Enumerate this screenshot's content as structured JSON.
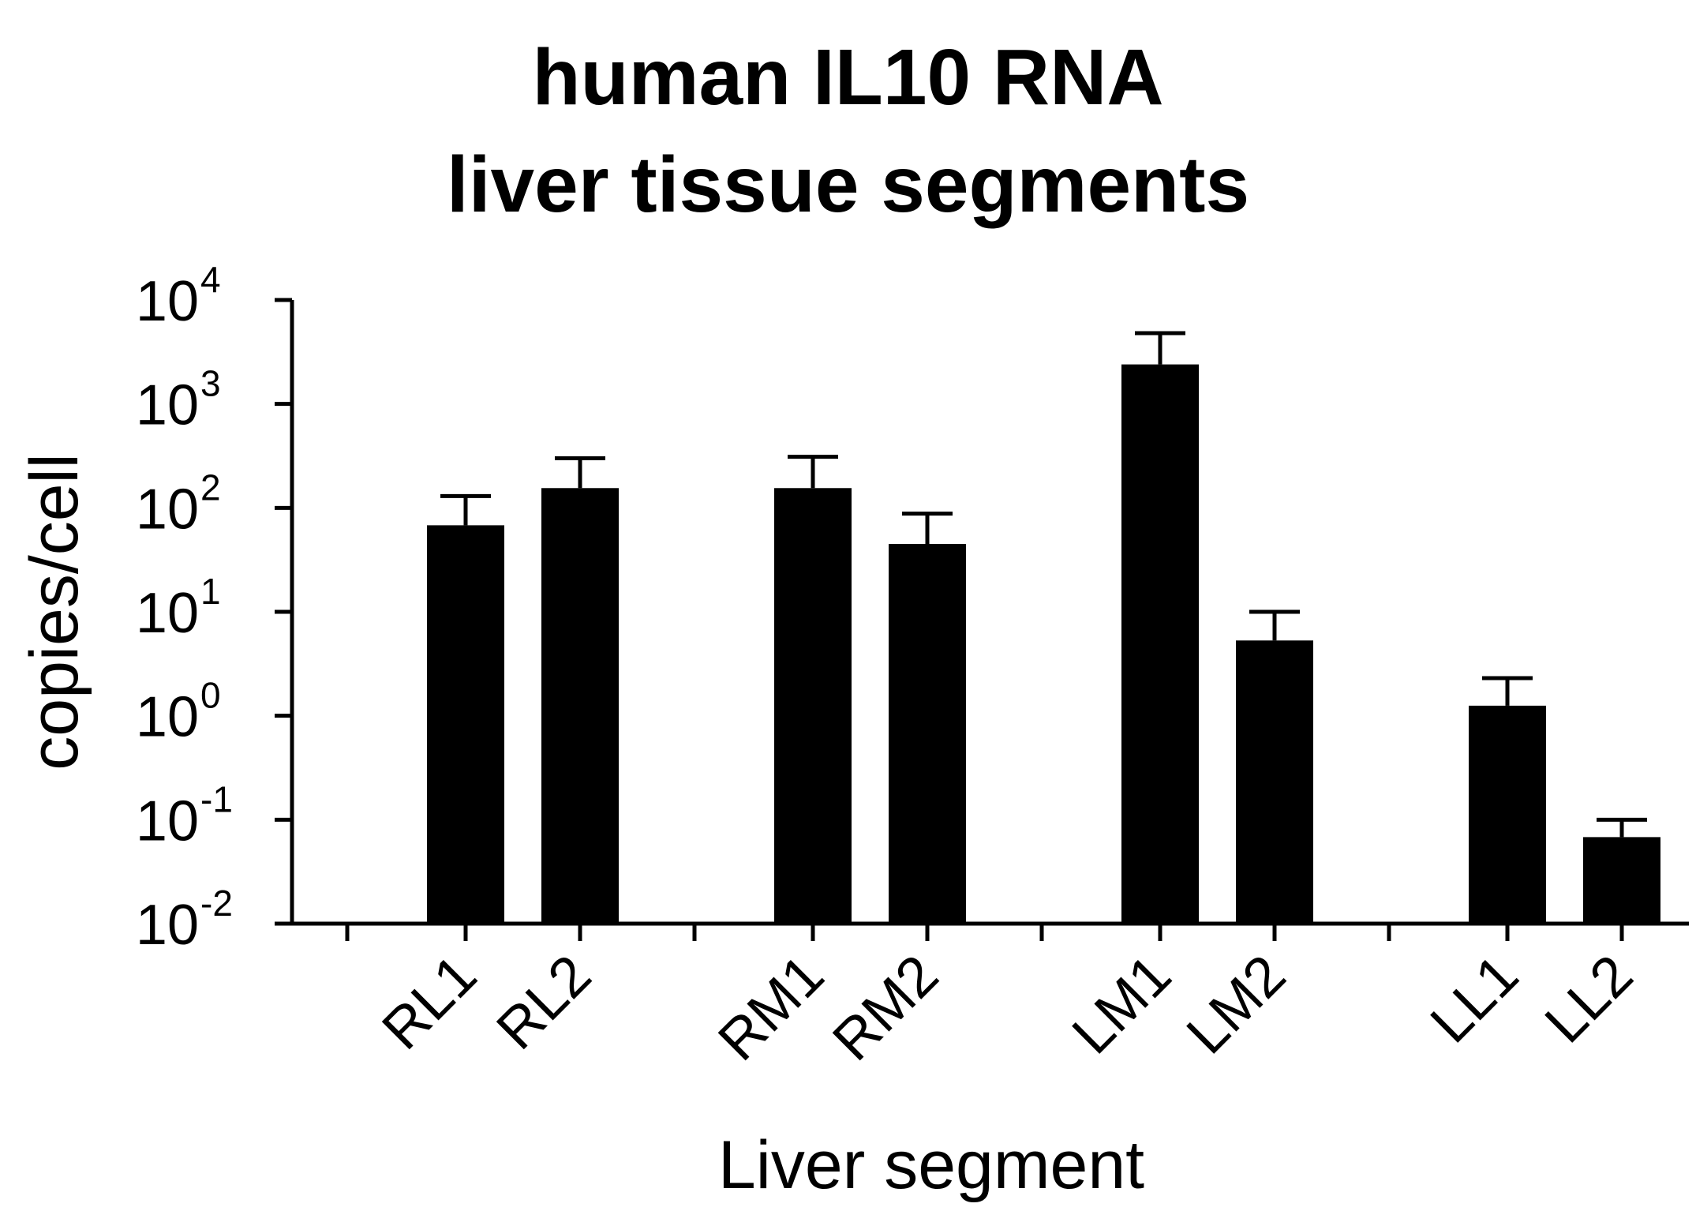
{
  "chart_data": {
    "type": "bar",
    "title": [
      "human IL10 RNA",
      "liver tissue segments"
    ],
    "xlabel": "Liver segment",
    "ylabel": "copies/cell",
    "yscale": "log",
    "ylim": [
      0.01,
      10000
    ],
    "yticks": [
      {
        "base": "10",
        "exp": "4"
      },
      {
        "base": "10",
        "exp": "3"
      },
      {
        "base": "10",
        "exp": "2"
      },
      {
        "base": "10",
        "exp": "1"
      },
      {
        "base": "10",
        "exp": "0"
      },
      {
        "base": "10",
        "exp": "-1"
      },
      {
        "base": "10",
        "exp": "-2"
      }
    ],
    "categories": [
      "RL1",
      "RL2",
      "RM1",
      "RM2",
      "LM1",
      "LM2",
      "LL1",
      "LL2"
    ],
    "values": [
      68,
      155,
      155,
      45,
      2400,
      5.3,
      1.25,
      0.068
    ],
    "error_upper": [
      130,
      300,
      310,
      88,
      4800,
      10,
      2.3,
      0.1
    ],
    "bar_color": "#000000",
    "grid": false
  }
}
